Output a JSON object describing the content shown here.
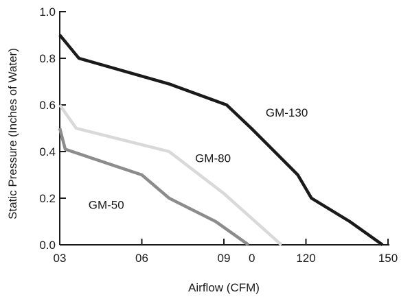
{
  "chart_data": {
    "type": "line",
    "title": "",
    "xlabel": "Airflow (CFM)",
    "ylabel": "Static Pressure (Inches of Water)",
    "xlim": [
      30,
      150
    ],
    "ylim": [
      0,
      1.0
    ],
    "x_ticks": [
      {
        "value": 30,
        "label": "03"
      },
      {
        "value": 60,
        "label": "06"
      },
      {
        "value": 90,
        "label": "09"
      },
      {
        "value": 120,
        "label": "120"
      },
      {
        "value": 150,
        "label": "150"
      }
    ],
    "x_tick_extra_labels": [
      {
        "value": 105,
        "label": "0"
      }
    ],
    "y_ticks": [
      {
        "value": 0.0,
        "label": "0.0"
      },
      {
        "value": 0.2,
        "label": "0.2"
      },
      {
        "value": 0.4,
        "label": "0.4"
      },
      {
        "value": 0.6,
        "label": "0.6"
      },
      {
        "value": 0.8,
        "label": "0.8"
      },
      {
        "value": 1.0,
        "label": "1.0"
      }
    ],
    "grid": false,
    "series": [
      {
        "name": "GM-130",
        "color": "#1a1a1a",
        "points": [
          [
            30,
            0.9
          ],
          [
            37,
            0.8
          ],
          [
            70,
            0.69
          ],
          [
            91,
            0.6
          ],
          [
            100,
            0.5
          ],
          [
            117,
            0.3
          ],
          [
            122,
            0.2
          ],
          [
            136,
            0.1
          ],
          [
            148,
            0.0
          ]
        ]
      },
      {
        "name": "GM-80",
        "color": "#d9d9d9",
        "points": [
          [
            30,
            0.6
          ],
          [
            36,
            0.5
          ],
          [
            70,
            0.4
          ],
          [
            90,
            0.22
          ],
          [
            111,
            0.0
          ]
        ]
      },
      {
        "name": "GM-50",
        "color": "#8c8c8c",
        "points": [
          [
            30,
            0.5
          ],
          [
            32,
            0.41
          ],
          [
            60,
            0.3
          ],
          [
            70,
            0.2
          ],
          [
            87,
            0.1
          ],
          [
            99,
            0.0
          ]
        ]
      }
    ],
    "annotations": [
      {
        "series": "GM-130",
        "x": 113,
        "y": 0.55
      },
      {
        "series": "GM-80",
        "x": 86,
        "y": 0.355
      },
      {
        "series": "GM-50",
        "x": 47,
        "y": 0.155
      }
    ]
  }
}
